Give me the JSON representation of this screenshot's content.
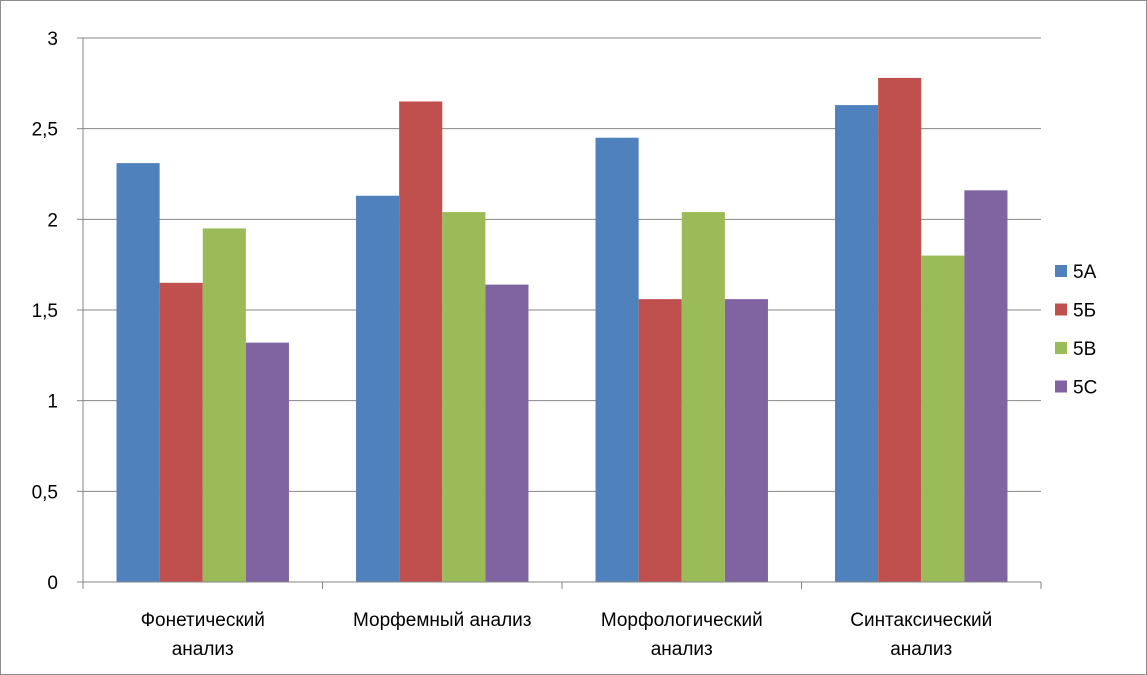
{
  "chart_data": {
    "type": "bar",
    "title": "",
    "xlabel": "",
    "ylabel": "",
    "ylim": [
      0,
      3
    ],
    "yticks": [
      "0",
      "0,5",
      "1",
      "1,5",
      "2",
      "2,5",
      "3"
    ],
    "grid": true,
    "legend_position": "right",
    "categories": [
      [
        "Фонетический",
        "анализ"
      ],
      [
        "Морфемный анализ"
      ],
      [
        "Морфологический",
        "анализ"
      ],
      [
        "Синтаксический",
        "анализ"
      ]
    ],
    "series": [
      {
        "name": "5А",
        "color": "#4F81BD",
        "values": [
          2.31,
          2.13,
          2.45,
          2.63
        ]
      },
      {
        "name": "5Б",
        "color": "#C0504D",
        "values": [
          1.65,
          2.65,
          1.56,
          2.78
        ]
      },
      {
        "name": "5В",
        "color": "#9BBB59",
        "values": [
          1.95,
          2.04,
          2.04,
          1.8
        ]
      },
      {
        "name": "5С",
        "color": "#8064A2",
        "values": [
          1.32,
          1.64,
          1.56,
          2.16
        ]
      }
    ]
  }
}
